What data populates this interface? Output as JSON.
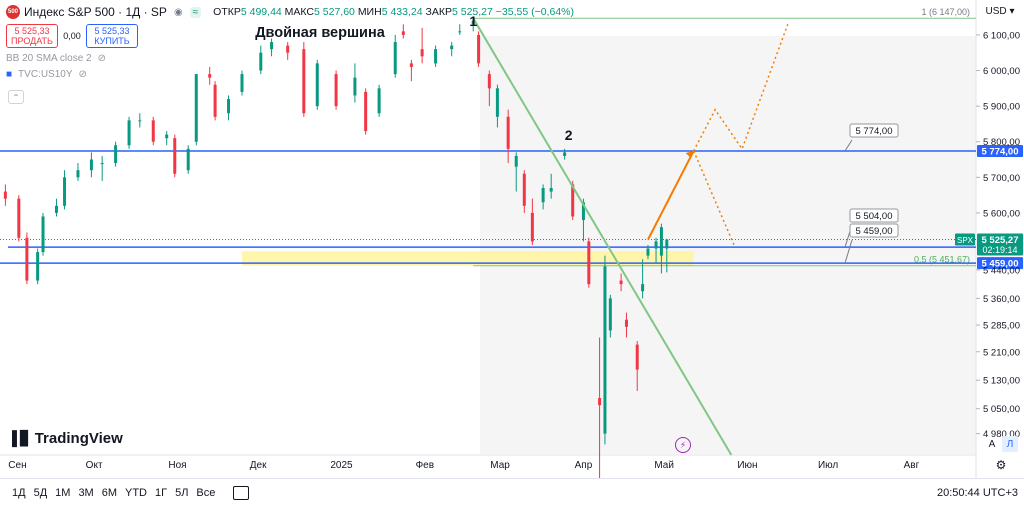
{
  "header": {
    "badge": "500",
    "symbol_title": "Индекс S&P 500 · 1Д · SP",
    "ohlc": [
      {
        "label": "ОТКР",
        "value": "5 499,44"
      },
      {
        "label": "МАКС",
        "value": "5 527,60"
      },
      {
        "label": "МИН",
        "value": "5 433,24"
      },
      {
        "label": "ЗАКР",
        "value": "5 525,27"
      }
    ],
    "change": "−35,55 (−0,64%)",
    "currency": "USD"
  },
  "trade": {
    "sell_price": "5 525,33",
    "sell_label": "ПРОДАТЬ",
    "spread": "0,00",
    "buy_price": "5 525,33",
    "buy_label": "КУПИТЬ"
  },
  "indicators": [
    "BB 20 SMA close 2",
    "TVC:US10Y"
  ],
  "bottom_bar": {
    "timeframes": [
      "1Д",
      "5Д",
      "1М",
      "3М",
      "6М",
      "YTD",
      "1Г",
      "5Л",
      "Все"
    ],
    "time": "20:50:44 UTC+3"
  },
  "axis_buttons": {
    "auto": "A",
    "log": "Л"
  },
  "brand": "TradingView",
  "colors": {
    "up": "#089981",
    "down": "#f23645",
    "levels": "#2962ff",
    "trend": "#81c784",
    "projection": "#f57c00",
    "zone": "#fff59d"
  },
  "chart_data": {
    "type": "candlestick",
    "title": "Двойная вершина",
    "symbol": "SPX",
    "x_ticks": [
      "Сен",
      "Окт",
      "Ноя",
      "Дек",
      "2025",
      "Фев",
      "Мар",
      "Апр",
      "Май",
      "Июн",
      "Июл",
      "Авг"
    ],
    "y_ticks": [
      6100,
      6000,
      5900,
      5800,
      5700,
      5600,
      5440,
      5360,
      5285,
      5210,
      5130,
      5050,
      4980
    ],
    "y_tick_labels": [
      "6 100,00",
      "6 000,00",
      "5 900,00",
      "5 800,00",
      "5 700,00",
      "5 600,00",
      "5 440,00",
      "5 360,00",
      "5 285,00",
      "5 210,00",
      "5 130,00",
      "5 050,00",
      "4 980,00"
    ],
    "ylim": [
      4920,
      6170
    ],
    "last_price": {
      "value": 5525.27,
      "label": "5 525,27",
      "countdown": "02:19:14"
    },
    "levels": [
      {
        "value": 5774,
        "label": "5 774,00"
      },
      {
        "value": 5504,
        "label": "5 504,00"
      },
      {
        "value": 5459,
        "label": "5 459,00"
      }
    ],
    "fib_labels": [
      {
        "value": 6147,
        "label": "1 (6 147,00)"
      },
      {
        "value": 5451.67,
        "label": "0,5 (5 451,67)"
      }
    ],
    "annotations": [
      {
        "text": "1",
        "date": "2025-02-19"
      },
      {
        "text": "2",
        "date": "2025-03-25"
      }
    ],
    "zone": {
      "from": 5451.67,
      "to": 5504
    },
    "trendline": [
      {
        "date": "2025-02-19",
        "value": 6147
      },
      {
        "date": "2025-05-26",
        "value": 4920
      }
    ],
    "projection_solid": [
      {
        "date": "2025-04-25",
        "value": 5525
      },
      {
        "date": "2025-05-12",
        "value": 5774
      }
    ],
    "projection_dotted": [
      {
        "date": "2025-05-12",
        "value": 5774
      },
      {
        "date": "2025-05-20",
        "value": 5890
      },
      {
        "date": "2025-05-30",
        "value": 5780
      },
      {
        "date": "2025-06-16",
        "value": 6130
      }
    ],
    "projection_dotted_down": [
      {
        "date": "2025-05-12",
        "value": 5774
      },
      {
        "date": "2025-05-27",
        "value": 5510
      }
    ],
    "candles": [
      [
        "2024-08-29",
        5660,
        5680,
        5620,
        5640
      ],
      [
        "2024-09-03",
        5640,
        5650,
        5520,
        5530
      ],
      [
        "2024-09-06",
        5530,
        5545,
        5400,
        5410
      ],
      [
        "2024-09-10",
        5410,
        5500,
        5400,
        5490
      ],
      [
        "2024-09-12",
        5490,
        5600,
        5480,
        5590
      ],
      [
        "2024-09-17",
        5600,
        5640,
        5590,
        5620
      ],
      [
        "2024-09-20",
        5620,
        5720,
        5610,
        5700
      ],
      [
        "2024-09-25",
        5700,
        5740,
        5690,
        5720
      ],
      [
        "2024-09-30",
        5720,
        5770,
        5700,
        5750
      ],
      [
        "2024-10-04",
        5740,
        5760,
        5690,
        5740
      ],
      [
        "2024-10-09",
        5740,
        5800,
        5730,
        5790
      ],
      [
        "2024-10-14",
        5790,
        5870,
        5780,
        5860
      ],
      [
        "2024-10-18",
        5860,
        5880,
        5840,
        5860
      ],
      [
        "2024-10-23",
        5860,
        5870,
        5790,
        5800
      ],
      [
        "2024-10-28",
        5810,
        5830,
        5790,
        5820
      ],
      [
        "2024-10-31",
        5810,
        5820,
        5700,
        5710
      ],
      [
        "2024-11-05",
        5720,
        5790,
        5710,
        5780
      ],
      [
        "2024-11-08",
        5800,
        5990,
        5790,
        5990
      ],
      [
        "2024-11-13",
        5990,
        6010,
        5960,
        5980
      ],
      [
        "2024-11-15",
        5960,
        5970,
        5860,
        5870
      ],
      [
        "2024-11-20",
        5880,
        5930,
        5860,
        5920
      ],
      [
        "2024-11-25",
        5940,
        6000,
        5930,
        5990
      ],
      [
        "2024-12-02",
        6000,
        6070,
        5990,
        6050
      ],
      [
        "2024-12-06",
        6060,
        6090,
        6040,
        6080
      ],
      [
        "2024-12-12",
        6070,
        6080,
        6030,
        6050
      ],
      [
        "2024-12-18",
        6060,
        6080,
        5870,
        5880
      ],
      [
        "2024-12-23",
        5900,
        6030,
        5890,
        6020
      ],
      [
        "2024-12-30",
        5990,
        6000,
        5890,
        5900
      ],
      [
        "2025-01-06",
        5930,
        6020,
        5910,
        5980
      ],
      [
        "2025-01-10",
        5940,
        5950,
        5820,
        5830
      ],
      [
        "2025-01-15",
        5880,
        5960,
        5870,
        5950
      ],
      [
        "2025-01-21",
        5990,
        6100,
        5980,
        6080
      ],
      [
        "2025-01-24",
        6110,
        6130,
        6090,
        6100
      ],
      [
        "2025-01-27",
        6020,
        6030,
        5970,
        6010
      ],
      [
        "2025-01-31",
        6060,
        6120,
        6020,
        6040
      ],
      [
        "2025-02-05",
        6020,
        6070,
        6010,
        6060
      ],
      [
        "2025-02-11",
        6060,
        6080,
        6040,
        6070
      ],
      [
        "2025-02-14",
        6110,
        6130,
        6100,
        6110
      ],
      [
        "2025-02-19",
        6130,
        6147,
        6110,
        6140
      ],
      [
        "2025-02-21",
        6100,
        6110,
        6010,
        6020
      ],
      [
        "2025-02-25",
        5990,
        6000,
        5900,
        5950
      ],
      [
        "2025-02-28",
        5870,
        5960,
        5840,
        5950
      ],
      [
        "2025-03-04",
        5870,
        5890,
        5740,
        5780
      ],
      [
        "2025-03-07",
        5730,
        5770,
        5660,
        5760
      ],
      [
        "2025-03-10",
        5710,
        5720,
        5600,
        5620
      ],
      [
        "2025-03-13",
        5600,
        5640,
        5510,
        5520
      ],
      [
        "2025-03-17",
        5630,
        5680,
        5610,
        5670
      ],
      [
        "2025-03-20",
        5660,
        5710,
        5640,
        5670
      ],
      [
        "2025-03-25",
        5760,
        5780,
        5750,
        5770
      ],
      [
        "2025-03-28",
        5680,
        5690,
        5580,
        5590
      ],
      [
        "2025-04-01",
        5580,
        5640,
        5520,
        5630
      ],
      [
        "2025-04-03",
        5520,
        5530,
        5390,
        5400
      ],
      [
        "2025-04-07",
        5080,
        5250,
        4830,
        5060
      ],
      [
        "2025-04-09",
        4980,
        5480,
        4950,
        5450
      ],
      [
        "2025-04-11",
        5270,
        5370,
        5250,
        5360
      ],
      [
        "2025-04-15",
        5410,
        5430,
        5380,
        5400
      ],
      [
        "2025-04-17",
        5300,
        5320,
        5250,
        5280
      ],
      [
        "2025-04-21",
        5230,
        5240,
        5100,
        5160
      ],
      [
        "2025-04-23",
        5380,
        5470,
        5360,
        5400
      ],
      [
        "2025-04-25",
        5480,
        5510,
        5470,
        5500
      ],
      [
        "2025-04-28",
        5500,
        5530,
        5460,
        5520
      ],
      [
        "2025-04-30",
        5480,
        5570,
        5430,
        5560
      ],
      [
        "2025-05-02",
        5500,
        5527.6,
        5433.24,
        5525.27
      ]
    ]
  }
}
